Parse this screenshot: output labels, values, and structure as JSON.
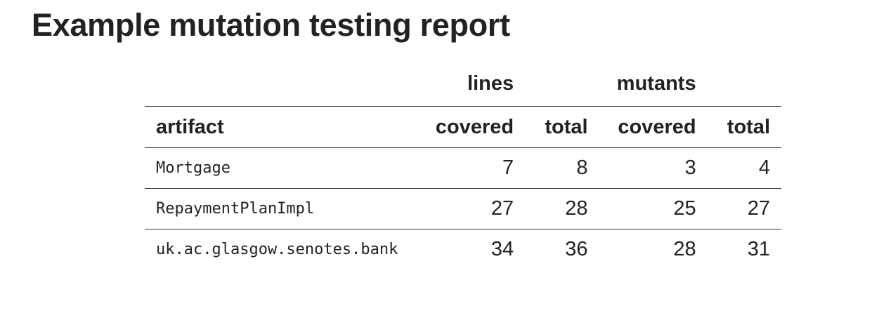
{
  "title": "Example mutation testing report",
  "table": {
    "groups": {
      "lines": "lines",
      "mutants": "mutants"
    },
    "columns": {
      "artifact": "artifact",
      "lines_covered": "covered",
      "lines_total": "total",
      "mutants_covered": "covered",
      "mutants_total": "total"
    },
    "rows": [
      {
        "artifact": "Mortgage",
        "lines_covered": "7",
        "lines_total": "8",
        "mutants_covered": "3",
        "mutants_total": "4"
      },
      {
        "artifact": "RepaymentPlanImpl",
        "lines_covered": "27",
        "lines_total": "28",
        "mutants_covered": "25",
        "mutants_total": "27"
      },
      {
        "artifact": "uk.ac.glasgow.senotes.bank",
        "lines_covered": "34",
        "lines_total": "36",
        "mutants_covered": "28",
        "mutants_total": "31"
      }
    ]
  }
}
